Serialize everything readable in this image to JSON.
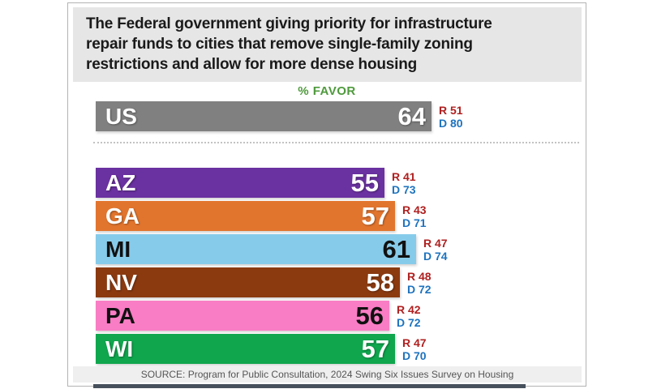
{
  "page": {
    "title_lines": [
      "The Federal government giving priority for infrastructure",
      "repair funds to cities that remove single-family zoning",
      "restrictions and allow for more dense housing"
    ],
    "favor_label": "% FAVOR",
    "source": "SOURCE: Program for Public Consultation, 2024 Swing Six Issues Survey on Housing"
  },
  "colors": {
    "republican_red": "#b02020",
    "democrat_blue": "#1e73be",
    "favor_green": "#4e9a3c",
    "title_bg": "#e6e6e6",
    "source_bg": "#efefef",
    "panel_border": "#b3b3b3",
    "bottom_strip": "#46505c"
  },
  "chart_data": {
    "type": "bar",
    "orientation": "horizontal",
    "title": "The Federal government giving priority for infrastructure repair funds to cities that remove single-family zoning restrictions and allow for more dense housing",
    "value_label": "% FAVOR",
    "xlabel": "",
    "ylabel": "",
    "xlim": [
      0,
      100
    ],
    "grid": false,
    "legend_position": "values-right-of-bars",
    "categories": [
      "US",
      "AZ",
      "GA",
      "MI",
      "NV",
      "PA",
      "WI"
    ],
    "series": [
      {
        "name": "% Favor (overall)",
        "values": [
          64,
          55,
          57,
          61,
          58,
          56,
          57
        ]
      },
      {
        "name": "Republicans",
        "values": [
          51,
          41,
          43,
          47,
          48,
          42,
          47
        ]
      },
      {
        "name": "Democrats",
        "values": [
          80,
          73,
          71,
          74,
          72,
          72,
          70
        ]
      }
    ],
    "rep_prefix": "R",
    "dem_prefix": "D",
    "rows": [
      {
        "label": "US",
        "favor": 64,
        "rep": 51,
        "dem": 80,
        "bar_color": "#808080",
        "text": "light",
        "group": "national"
      },
      {
        "label": "AZ",
        "favor": 55,
        "rep": 41,
        "dem": 73,
        "bar_color": "#6a31a0",
        "text": "light",
        "group": "state"
      },
      {
        "label": "GA",
        "favor": 57,
        "rep": 43,
        "dem": 71,
        "bar_color": "#e2752e",
        "text": "light",
        "group": "state"
      },
      {
        "label": "MI",
        "favor": 61,
        "rep": 47,
        "dem": 74,
        "bar_color": "#87cbea",
        "text": "dark",
        "group": "state"
      },
      {
        "label": "NV",
        "favor": 58,
        "rep": 48,
        "dem": 72,
        "bar_color": "#8b3a10",
        "text": "light",
        "group": "state"
      },
      {
        "label": "PA",
        "favor": 56,
        "rep": 42,
        "dem": 72,
        "bar_color": "#f97dc4",
        "text": "dark",
        "group": "state"
      },
      {
        "label": "WI",
        "favor": 57,
        "rep": 47,
        "dem": 70,
        "bar_color": "#0fa64e",
        "text": "light",
        "group": "state"
      }
    ],
    "source": "SOURCE: Program for Public Consultation, 2024 Swing Six Issues Survey on Housing"
  }
}
